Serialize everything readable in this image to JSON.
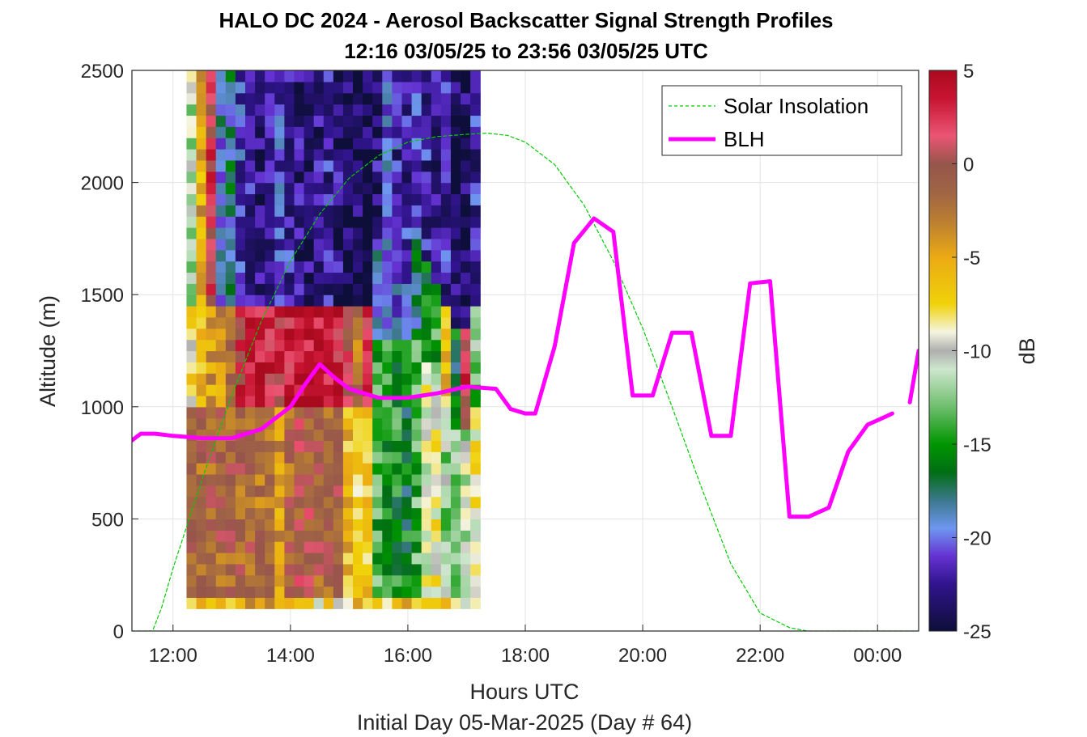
{
  "chart_data": {
    "type": "heatmap",
    "title": "HALO DC 2024 - Aerosol Backscatter Signal Strength Profiles",
    "subtitle": "12:16 03/05/25 to 23:56 03/05/25  UTC",
    "xlabel": "Hours UTC",
    "xlabel2": "Initial Day 05-Mar-2025 (Day # 64)",
    "ylabel": "Altitude (m)",
    "xlim": [
      11.3,
      24.7
    ],
    "ylim": [
      0,
      2500
    ],
    "x_ticks": [
      12,
      14,
      16,
      18,
      20,
      22,
      24
    ],
    "x_tick_labels": [
      "12:00",
      "14:00",
      "16:00",
      "18:00",
      "20:00",
      "22:00",
      "00:00"
    ],
    "y_ticks": [
      0,
      500,
      1000,
      1500,
      2000,
      2500
    ],
    "y_tick_labels": [
      "0",
      "500",
      "1000",
      "1500",
      "2000",
      "2500"
    ],
    "grid": true,
    "legend_position": "top-right",
    "colorbar": {
      "label": "dB",
      "range": [
        -25,
        5
      ],
      "ticks": [
        5,
        0,
        -5,
        -10,
        -15,
        -20,
        -25
      ],
      "tick_labels": [
        "5",
        "0",
        "-5",
        "-10",
        "-15",
        "-20",
        "-25"
      ]
    },
    "heatmap": {
      "x_start": 12.23,
      "x_step": 0.1667,
      "columns": 30,
      "y_start": 100,
      "y_step": 50,
      "rows": 48,
      "unit": "dB",
      "column_profiles": [
        {
          "bl_top": 1000,
          "bl_db": -1.5,
          "mid_db": -7.5,
          "aloft_db": -11
        },
        {
          "bl_top": 1000,
          "bl_db": -1.5,
          "mid_db": -6.5,
          "aloft_db": -5
        },
        {
          "bl_top": 1000,
          "bl_db": -1.5,
          "mid_db": -4.5,
          "aloft_db": 1.5
        },
        {
          "bl_top": 1000,
          "bl_db": -1.5,
          "mid_db": -4,
          "aloft_db": -19
        },
        {
          "bl_top": 1000,
          "bl_db": -1.5,
          "mid_db": -2.5,
          "aloft_db": -18
        },
        {
          "bl_top": 1000,
          "bl_db": -1.5,
          "mid_db": 2,
          "aloft_db": -21
        },
        {
          "bl_top": 1000,
          "bl_db": -1.5,
          "mid_db": 3.5,
          "aloft_db": -22
        },
        {
          "bl_top": 1000,
          "bl_db": -2,
          "mid_db": 3,
          "aloft_db": -23
        },
        {
          "bl_top": 1000,
          "bl_db": -2,
          "mid_db": 2.5,
          "aloft_db": -22
        },
        {
          "bl_top": 1000,
          "bl_db": -4,
          "mid_db": 2,
          "aloft_db": -21
        },
        {
          "bl_top": 1000,
          "bl_db": -1.5,
          "mid_db": 3.5,
          "aloft_db": -22
        },
        {
          "bl_top": 1000,
          "bl_db": -0.5,
          "mid_db": 4,
          "aloft_db": -23
        },
        {
          "bl_top": 1000,
          "bl_db": -0.5,
          "mid_db": 4,
          "aloft_db": -23
        },
        {
          "bl_top": 1000,
          "bl_db": -1,
          "mid_db": 4,
          "aloft_db": -23
        },
        {
          "bl_top": 1000,
          "bl_db": -1,
          "mid_db": 3.5,
          "aloft_db": -22
        },
        {
          "bl_top": 1000,
          "bl_db": -1,
          "mid_db": 3,
          "aloft_db": -23
        },
        {
          "bl_top": 1000,
          "bl_db": -6,
          "mid_db": 1,
          "aloft_db": -24
        },
        {
          "bl_top": 1000,
          "bl_db": -7,
          "mid_db": -2,
          "aloft_db": -24
        },
        {
          "bl_top": 1000,
          "bl_db": -7,
          "mid_db": 3,
          "aloft_db": -24
        },
        {
          "bl_top": 1300,
          "bl_db": -14,
          "mid_db": -19,
          "aloft_db": -23
        },
        {
          "bl_top": 1300,
          "bl_db": -15,
          "mid_db": -19,
          "aloft_db": -20
        },
        {
          "bl_top": 1300,
          "bl_db": -15,
          "mid_db": -20,
          "aloft_db": -22
        },
        {
          "bl_top": 1300,
          "bl_db": -16,
          "mid_db": -21,
          "aloft_db": -22
        },
        {
          "bl_top": 1300,
          "bl_db": -14,
          "mid_db": -18,
          "aloft_db": -21
        },
        {
          "bl_top": 1200,
          "bl_db": -10,
          "mid_db": -15,
          "aloft_db": -22
        },
        {
          "bl_top": 1100,
          "bl_db": -9,
          "mid_db": -14,
          "aloft_db": -23
        },
        {
          "bl_top": 1000,
          "bl_db": -12,
          "mid_db": -6,
          "aloft_db": -22
        },
        {
          "bl_top": 900,
          "bl_db": -13,
          "mid_db": -16,
          "aloft_db": -24
        },
        {
          "bl_top": 900,
          "bl_db": -11,
          "mid_db": 2,
          "aloft_db": -24
        },
        {
          "bl_top": 1000,
          "bl_db": -9,
          "mid_db": -13,
          "aloft_db": -22
        }
      ]
    },
    "series": [
      {
        "name": "Solar Insolation",
        "style": "dashed",
        "color": "#00cc00",
        "x": [
          11.3,
          11.65,
          11.8,
          12.0,
          12.5,
          13.0,
          13.5,
          14.0,
          14.5,
          15.0,
          15.5,
          16.0,
          16.5,
          17.0,
          17.35,
          17.7,
          18.0,
          18.5,
          19.0,
          19.5,
          20.0,
          20.5,
          21.0,
          21.5,
          22.0,
          22.5,
          22.8,
          23.0,
          23.1,
          24.7
        ],
        "y": [
          0,
          0,
          100,
          280,
          680,
          1050,
          1380,
          1650,
          1860,
          2020,
          2120,
          2180,
          2205,
          2215,
          2220,
          2210,
          2180,
          2080,
          1900,
          1650,
          1350,
          1000,
          640,
          300,
          80,
          15,
          0,
          0,
          0,
          0
        ]
      },
      {
        "name": "BLH",
        "style": "solid",
        "color": "#ff00ff",
        "x": [
          11.3,
          11.45,
          11.7,
          12.0,
          12.5,
          13.0,
          13.5,
          14.0,
          14.25,
          14.5,
          14.75,
          15.0,
          15.5,
          16.0,
          16.5,
          17.0,
          17.5,
          17.75,
          18.0,
          18.17,
          18.5,
          18.83,
          19.17,
          19.5,
          19.83,
          20.17,
          20.5,
          20.83,
          21.17,
          21.5,
          21.83,
          22.17,
          22.5,
          22.83,
          23.17,
          23.5,
          23.83,
          24.17,
          24.25
        ],
        "y": [
          850,
          880,
          880,
          870,
          860,
          860,
          900,
          1000,
          1100,
          1190,
          1130,
          1080,
          1040,
          1040,
          1060,
          1090,
          1080,
          990,
          970,
          970,
          1270,
          1730,
          1840,
          1780,
          1050,
          1050,
          1330,
          1330,
          870,
          870,
          1550,
          1560,
          510,
          510,
          550,
          800,
          920,
          960,
          970
        ]
      },
      {
        "name": "",
        "style": "solid",
        "color": "#ff00ff",
        "x": [
          24.55,
          24.7
        ],
        "y": [
          1020,
          1250
        ]
      }
    ]
  }
}
